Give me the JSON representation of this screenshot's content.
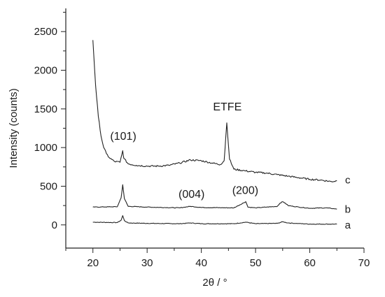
{
  "chart_data": {
    "type": "line",
    "xlabel": "2θ / °",
    "ylabel": "Intensity (counts)",
    "xlim": [
      15,
      70
    ],
    "ylim": [
      -300,
      2800
    ],
    "xticks": [
      20,
      30,
      40,
      50,
      60,
      70
    ],
    "yticks": [
      0,
      500,
      1000,
      1500,
      2000,
      2500
    ],
    "grid": false,
    "series": [
      {
        "name": "a",
        "color": "#222222",
        "points": [
          [
            20,
            35
          ],
          [
            24.5,
            30
          ],
          [
            25.2,
            60
          ],
          [
            25.5,
            120
          ],
          [
            25.8,
            55
          ],
          [
            26.5,
            25
          ],
          [
            30,
            20
          ],
          [
            36,
            15
          ],
          [
            38,
            25
          ],
          [
            40,
            15
          ],
          [
            46,
            15
          ],
          [
            48.2,
            35
          ],
          [
            50,
            15
          ],
          [
            54,
            20
          ],
          [
            55,
            40
          ],
          [
            56,
            25
          ],
          [
            60,
            10
          ],
          [
            65,
            10
          ]
        ]
      },
      {
        "name": "b",
        "color": "#222222",
        "points": [
          [
            20,
            230
          ],
          [
            24.5,
            235
          ],
          [
            25.2,
            350
          ],
          [
            25.5,
            520
          ],
          [
            25.8,
            340
          ],
          [
            26.5,
            240
          ],
          [
            30,
            230
          ],
          [
            36,
            220
          ],
          [
            38,
            240
          ],
          [
            40,
            225
          ],
          [
            46,
            220
          ],
          [
            48.2,
            300
          ],
          [
            48.6,
            230
          ],
          [
            50,
            220
          ],
          [
            54,
            240
          ],
          [
            54.5,
            280
          ],
          [
            55,
            300
          ],
          [
            55.5,
            280
          ],
          [
            56,
            250
          ],
          [
            58,
            230
          ],
          [
            60,
            215
          ],
          [
            63,
            220
          ],
          [
            65,
            205
          ]
        ]
      },
      {
        "name": "c",
        "color": "#222222",
        "points": [
          [
            20,
            2390
          ],
          [
            20.5,
            1800
          ],
          [
            21,
            1400
          ],
          [
            21.5,
            1150
          ],
          [
            22,
            1000
          ],
          [
            22.5,
            920
          ],
          [
            23,
            870
          ],
          [
            24,
            820
          ],
          [
            25,
            810
          ],
          [
            25.3,
            900
          ],
          [
            25.5,
            960
          ],
          [
            25.7,
            860
          ],
          [
            26.5,
            790
          ],
          [
            28,
            770
          ],
          [
            30,
            760
          ],
          [
            32,
            760
          ],
          [
            34,
            770
          ],
          [
            36,
            800
          ],
          [
            38,
            840
          ],
          [
            40,
            830
          ],
          [
            42,
            800
          ],
          [
            43.5,
            780
          ],
          [
            44.2,
            830
          ],
          [
            44.7,
            1320
          ],
          [
            45.2,
            850
          ],
          [
            46,
            720
          ],
          [
            48,
            700
          ],
          [
            50,
            680
          ],
          [
            52,
            670
          ],
          [
            54,
            650
          ],
          [
            56,
            630
          ],
          [
            58,
            610
          ],
          [
            60,
            590
          ],
          [
            62,
            580
          ],
          [
            64,
            560
          ],
          [
            65,
            570
          ]
        ]
      }
    ],
    "series_labels": [
      {
        "text": "a",
        "x": 67,
        "y": 0
      },
      {
        "text": "b",
        "x": 67,
        "y": 200
      },
      {
        "text": "c",
        "x": 67,
        "y": 580
      }
    ],
    "annotations": [
      {
        "text": "(101)",
        "x": 25.6,
        "y": 1100
      },
      {
        "text": "(004)",
        "x": 38.2,
        "y": 350
      },
      {
        "text": "(200)",
        "x": 48.1,
        "y": 400
      },
      {
        "text": "ETFE",
        "x": 44.8,
        "y": 1480
      }
    ]
  }
}
